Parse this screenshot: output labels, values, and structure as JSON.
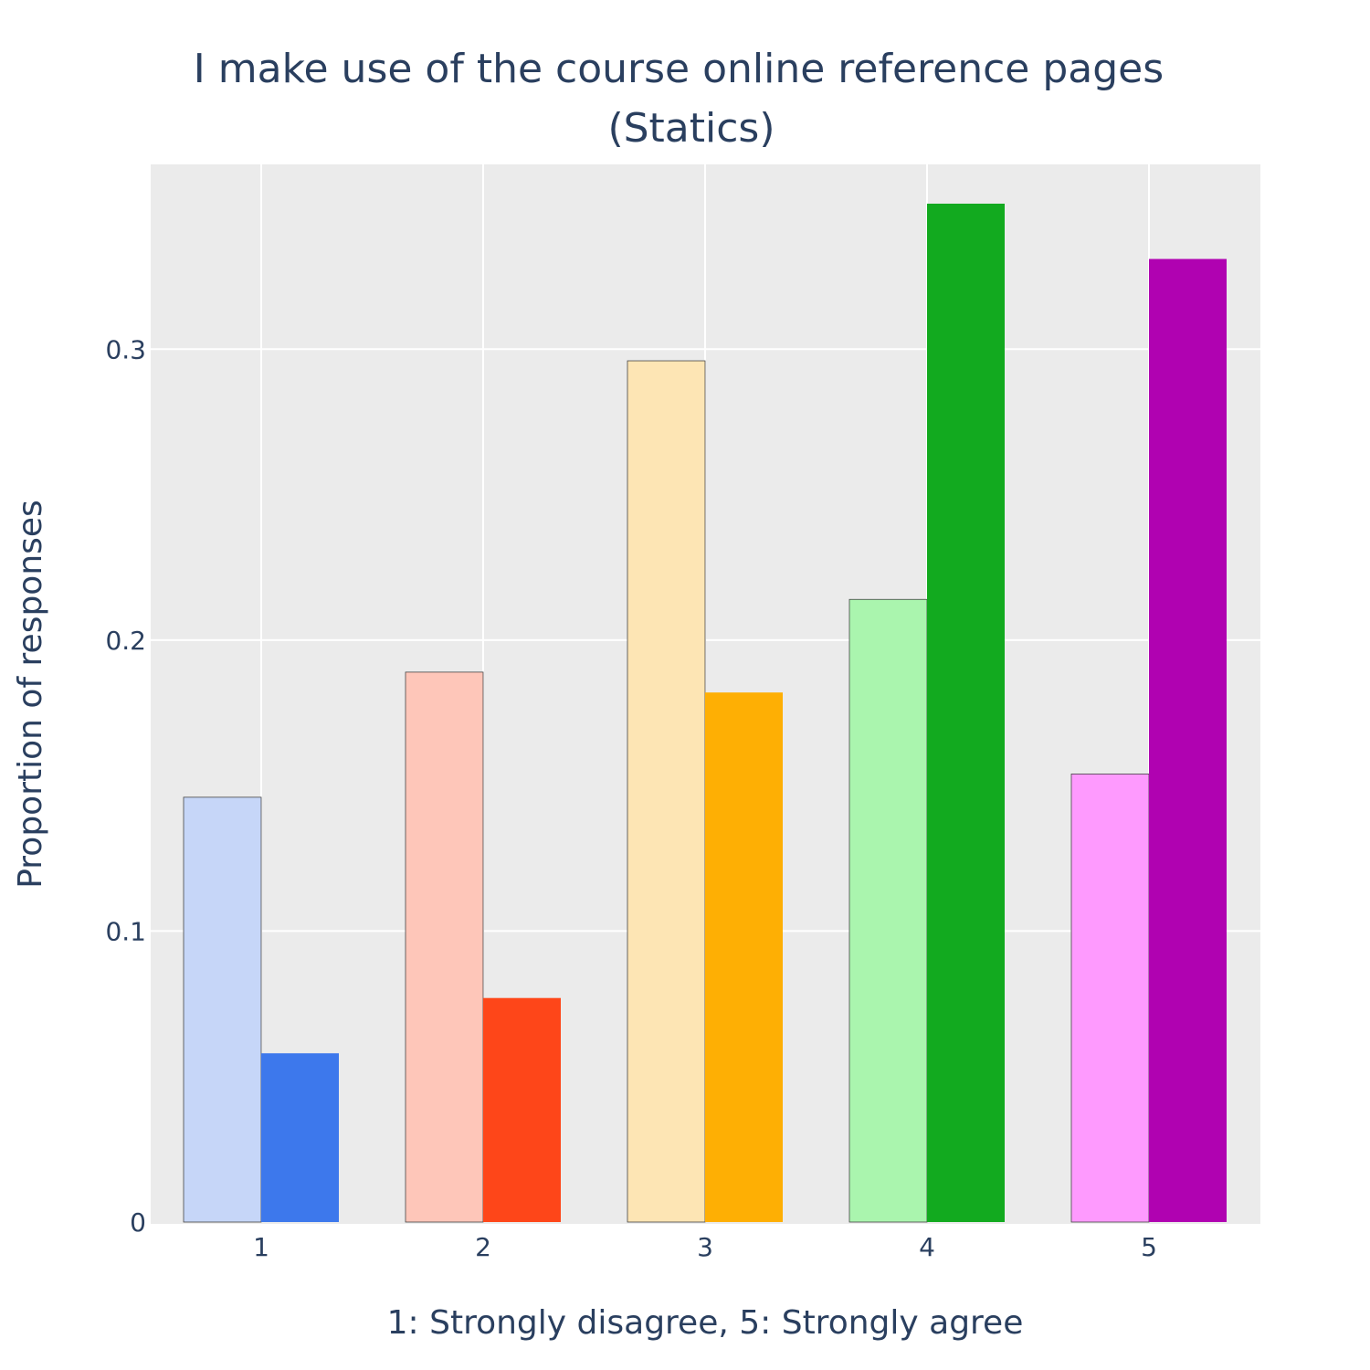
{
  "chart_data": {
    "type": "bar",
    "title_lines": [
      "I make use of the course online reference pages",
      "(Statics)"
    ],
    "xlabel": "1: Strongly disagree, 5: Strongly agree",
    "ylabel": "Proportion of responses",
    "categories": [
      "1",
      "2",
      "3",
      "4",
      "5"
    ],
    "ylim": [
      0,
      0.3635
    ],
    "yticks": [
      0,
      0.1,
      0.2,
      0.3
    ],
    "ytick_labels": [
      "0",
      "0.1",
      "0.2",
      "0.3"
    ],
    "grid": true,
    "series": [
      {
        "values": [
          0.146,
          0.189,
          0.296,
          0.214,
          0.154
        ],
        "colors": [
          "#c6d6f8",
          "#fec6b9",
          "#fde5b4",
          "#aaf5ae",
          "#fe9afe"
        ],
        "outline": true
      },
      {
        "values": [
          0.058,
          0.077,
          0.182,
          0.35,
          0.331
        ],
        "colors": [
          "#3d78ec",
          "#fe4619",
          "#feaf04",
          "#12aa1f",
          "#b002b1"
        ],
        "outline": false
      }
    ],
    "plot_background": "#ebebeb",
    "grid_color": "#ffffff",
    "text_color": "#2a3f5f"
  }
}
